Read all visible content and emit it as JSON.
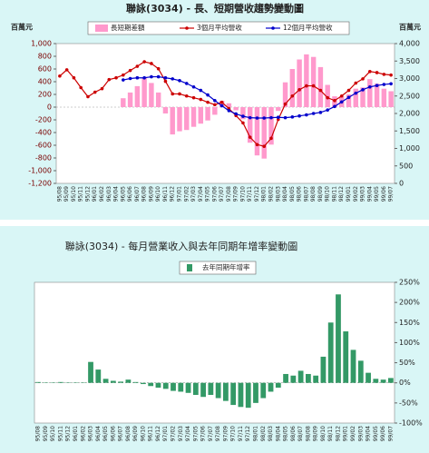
{
  "chart_data": [
    {
      "type": "combo",
      "title": "聯詠(3034) - 長、短期營收趨勢變動圖",
      "y_label": "百萬元",
      "y2_label": "百萬元",
      "categories": [
        "95/08",
        "95/09",
        "95/10",
        "95/11",
        "95/12",
        "96/01",
        "96/02",
        "96/03",
        "96/04",
        "96/05",
        "96/06",
        "96/07",
        "96/08",
        "96/09",
        "96/10",
        "96/11",
        "96/12",
        "97/01",
        "97/02",
        "97/03",
        "97/04",
        "97/05",
        "97/06",
        "97/07",
        "97/08",
        "97/09",
        "97/10",
        "97/11",
        "97/12",
        "98/01",
        "98/02",
        "98/03",
        "98/04",
        "98/05",
        "98/06",
        "98/07",
        "98/08",
        "98/09",
        "98/10",
        "98/11",
        "98/12",
        "99/01",
        "99/02",
        "99/03",
        "99/04",
        "99/05",
        "99/06",
        "99/07"
      ],
      "ylim": [
        -1200,
        1000
      ],
      "yticks": [
        {
          "value": -1200,
          "label": "-1,200"
        },
        {
          "value": -1000,
          "label": "-1,000"
        },
        -800,
        -600,
        -400,
        -200,
        0,
        200,
        400,
        600,
        800,
        {
          "value": 1000,
          "label": "1,000"
        }
      ],
      "y2lim": [
        0,
        4000
      ],
      "y2ticks": [
        0,
        500,
        {
          "value": 1000,
          "label": "1,000"
        },
        {
          "value": 1500,
          "label": "1,500"
        },
        {
          "value": 2000,
          "label": "2,000"
        },
        {
          "value": 2500,
          "label": "2,500"
        },
        {
          "value": 3000,
          "label": "3,000"
        },
        {
          "value": 3500,
          "label": "3,500"
        },
        {
          "value": 4000,
          "label": "4,000"
        }
      ],
      "series": [
        {
          "name": "長短期差額",
          "type": "bar",
          "color": "#ff99cc",
          "values": [
            null,
            null,
            null,
            null,
            null,
            null,
            null,
            null,
            null,
            140,
            230,
            330,
            460,
            380,
            230,
            -100,
            -430,
            -380,
            -360,
            -310,
            -260,
            -210,
            -120,
            100,
            60,
            -50,
            -190,
            -560,
            -760,
            -810,
            -590,
            -60,
            390,
            600,
            750,
            830,
            790,
            630,
            350,
            170,
            170,
            200,
            290,
            310,
            440,
            370,
            290,
            250
          ]
        },
        {
          "name": "3個月平均營收",
          "type": "line",
          "axis": "y2",
          "color": "#cc0000",
          "values": [
            3070,
            3250,
            3020,
            2740,
            2480,
            2610,
            2710,
            2970,
            3020,
            3100,
            3230,
            3350,
            3480,
            3430,
            3280,
            2920,
            2560,
            2560,
            2500,
            2450,
            2400,
            2320,
            2250,
            2320,
            2140,
            1940,
            1730,
            1320,
            1110,
            1060,
            1290,
            1830,
            2270,
            2500,
            2680,
            2790,
            2790,
            2660,
            2450,
            2370,
            2500,
            2660,
            2870,
            2990,
            3200,
            3170,
            3120,
            3100
          ]
        },
        {
          "name": "12個月平均營收",
          "type": "line",
          "axis": "y2",
          "color": "#0000cc",
          "values": [
            null,
            null,
            null,
            null,
            null,
            null,
            null,
            null,
            null,
            2960,
            3000,
            3020,
            3020,
            3050,
            3050,
            3020,
            2990,
            2940,
            2860,
            2760,
            2660,
            2530,
            2370,
            2220,
            2080,
            1990,
            1920,
            1880,
            1870,
            1870,
            1880,
            1890,
            1880,
            1900,
            1930,
            1960,
            2000,
            2030,
            2100,
            2200,
            2330,
            2460,
            2580,
            2680,
            2760,
            2800,
            2830,
            2850
          ]
        }
      ]
    },
    {
      "type": "bar",
      "title": "聯詠(3034) - 每月營業收入與去年同期年增率變動圖",
      "yaxis_position": "right",
      "categories": [
        "95/08",
        "95/09",
        "95/10",
        "95/11",
        "95/12",
        "96/01",
        "96/02",
        "96/03",
        "96/04",
        "96/05",
        "96/06",
        "96/07",
        "96/08",
        "96/09",
        "96/10",
        "96/11",
        "96/12",
        "97/01",
        "97/02",
        "97/03",
        "97/04",
        "97/05",
        "97/06",
        "97/07",
        "97/08",
        "97/09",
        "97/10",
        "97/11",
        "97/12",
        "98/01",
        "98/02",
        "98/03",
        "98/04",
        "98/05",
        "98/06",
        "98/07",
        "98/08",
        "98/09",
        "98/10",
        "98/11",
        "98/12",
        "99/01",
        "99/02",
        "99/03",
        "99/04",
        "99/05",
        "99/06",
        "99/07"
      ],
      "ylim": [
        -100,
        250
      ],
      "yticks": [
        {
          "value": -100,
          "label": "-100%"
        },
        {
          "value": -50,
          "label": "-50%"
        },
        {
          "value": 0,
          "label": "0%"
        },
        {
          "value": 50,
          "label": "50%"
        },
        {
          "value": 100,
          "label": "100%"
        },
        {
          "value": 150,
          "label": "150%"
        },
        {
          "value": 200,
          "label": "200%"
        },
        {
          "value": 250,
          "label": "250%"
        }
      ],
      "series": [
        {
          "name": "去年同期年增率",
          "color": "#339966",
          "values": [
            2,
            1,
            1,
            2,
            1,
            1,
            1,
            52,
            33,
            10,
            5,
            3,
            8,
            2,
            -3,
            -8,
            -12,
            -15,
            -20,
            -22,
            -25,
            -30,
            -35,
            -30,
            -38,
            -45,
            -55,
            -60,
            -62,
            -50,
            -38,
            -22,
            -12,
            22,
            18,
            30,
            22,
            18,
            65,
            150,
            220,
            128,
            82,
            55,
            25,
            10,
            8,
            12
          ]
        }
      ]
    }
  ]
}
